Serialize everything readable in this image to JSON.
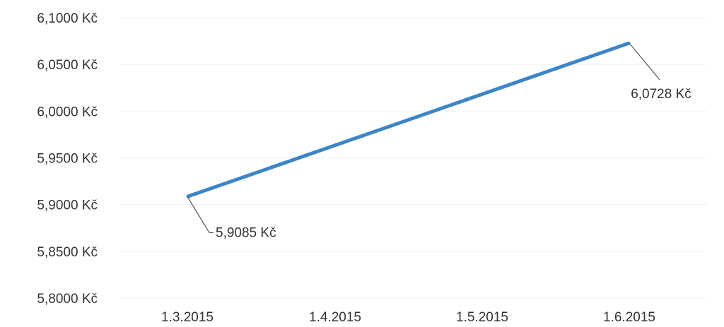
{
  "chart_data": {
    "type": "line",
    "title": "",
    "xlabel": "",
    "ylabel": "",
    "categories": [
      "1.3.2015",
      "1.4.2015",
      "1.5.2015",
      "1.6.2015"
    ],
    "y_ticks": [
      "6,1000 Kč",
      "6,0500 Kč",
      "6,0000 Kč",
      "5,9500 Kč",
      "5,9000 Kč",
      "5,8500 Kč",
      "5,8000 Kč"
    ],
    "ylim": [
      5.8,
      6.1
    ],
    "grid": true,
    "legend": "none",
    "series": [
      {
        "x": [
          "1.3.2015",
          "1.6.2015"
        ],
        "values": [
          5.9085,
          6.0728
        ],
        "color": "#3d85c6",
        "data_labels": [
          {
            "x": "1.3.2015",
            "text": "5,9085 Kč"
          },
          {
            "x": "1.6.2015",
            "text": "6,0728 Kč"
          }
        ]
      }
    ]
  }
}
